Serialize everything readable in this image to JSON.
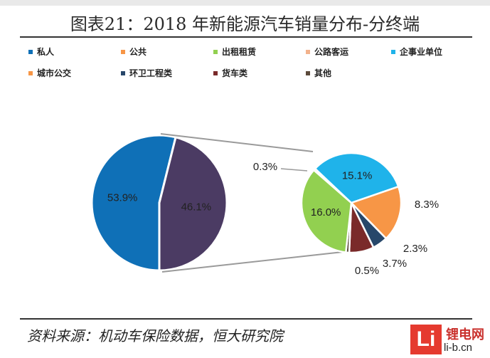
{
  "title": "图表21：2018 年新能源汽车销量分布-分终端",
  "source": "资料来源：机动车保险数据，恒大研究院",
  "watermark": {
    "logo": "Li",
    "name": "锂电网",
    "url": "li-b.cn"
  },
  "chart_data": [
    {
      "type": "pie",
      "series": [
        {
          "name": "私人",
          "value": 53.9,
          "label": "53.9%",
          "color": "#0f70b7"
        },
        {
          "name": "other",
          "value": 46.1,
          "label": "46.1%",
          "color": "#4b3b63"
        }
      ]
    },
    {
      "type": "pie",
      "series": [
        {
          "name": "公路客运",
          "value": 0.3,
          "label": "0.3%",
          "color": "#f2b28c"
        },
        {
          "name": "企事业单位",
          "value": 15.1,
          "label": "15.1%",
          "color": "#1fb3ea"
        },
        {
          "name": "城市公交",
          "value": 8.3,
          "label": "8.3%",
          "color": "#f79646"
        },
        {
          "name": "环卫工程类",
          "value": 2.3,
          "label": "2.3%",
          "color": "#27476a"
        },
        {
          "name": "货车类",
          "value": 3.7,
          "label": "3.7%",
          "color": "#7a2a2a"
        },
        {
          "name": "其他",
          "value": 0.5,
          "label": "0.5%",
          "color": "#5c4a3b"
        },
        {
          "name": "出租租赁",
          "value": 16.0,
          "label": "16.0%",
          "color": "#92d050"
        }
      ]
    }
  ],
  "legend": [
    {
      "label": "私人",
      "color": "#0f70b7"
    },
    {
      "label": "公共",
      "color": "#f79646"
    },
    {
      "label": "出租租赁",
      "color": "#92d050"
    },
    {
      "label": "公路客运",
      "color": "#f2b28c"
    },
    {
      "label": "企事业单位",
      "color": "#1fb3ea"
    },
    {
      "label": "城市公交",
      "color": "#f79646"
    },
    {
      "label": "环卫工程类",
      "color": "#27476a"
    },
    {
      "label": "货车类",
      "color": "#7a2a2a"
    },
    {
      "label": "其他",
      "color": "#5c4a3b"
    }
  ]
}
